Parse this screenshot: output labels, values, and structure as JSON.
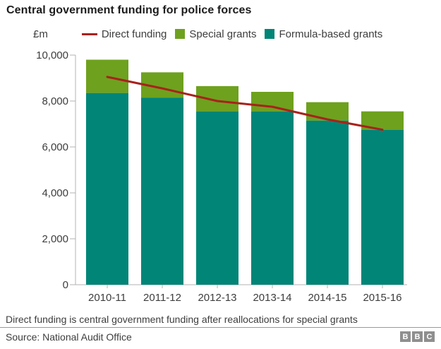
{
  "title": "Central government funding for police forces",
  "legend": {
    "unit_label": "£m",
    "items": [
      {
        "label": "Direct funding",
        "type": "line",
        "color": "#a8221c"
      },
      {
        "label": "Special grants",
        "type": "square",
        "color": "#6ea11e"
      },
      {
        "label": "Formula-based grants",
        "type": "square",
        "color": "#008577"
      }
    ]
  },
  "chart_data": {
    "type": "bar",
    "stacked": true,
    "title": "Central government funding for police forces",
    "ylabel": "£m",
    "xlabel": "",
    "ylim": [
      0,
      10000
    ],
    "yticks": [
      0,
      2000,
      4000,
      6000,
      8000,
      10000
    ],
    "ytick_labels": [
      "0",
      "2,000",
      "4,000",
      "6,000",
      "8,000",
      "10,000"
    ],
    "grid": false,
    "legend_position": "top",
    "categories": [
      "2010-11",
      "2011-12",
      "2012-13",
      "2013-14",
      "2014-15",
      "2015-16"
    ],
    "series": [
      {
        "name": "Formula-based grants",
        "render": "bar",
        "color": "#008577",
        "values": [
          8350,
          8150,
          7550,
          7550,
          7150,
          6750
        ]
      },
      {
        "name": "Special grants",
        "render": "bar",
        "color": "#6ea11e",
        "values": [
          1450,
          1100,
          1100,
          850,
          800,
          800
        ]
      },
      {
        "name": "Direct funding",
        "render": "line",
        "color": "#a8221c",
        "values": [
          9050,
          8550,
          8000,
          7750,
          7200,
          6750
        ]
      }
    ]
  },
  "colors": {
    "axis": "#b3b3b3",
    "tick_text": "#3d3d3d",
    "divider": "#999999",
    "logo_block": "#8f8f8f"
  },
  "footnote": "Direct funding is central government funding after reallocations for special grants",
  "source": "Source: National Audit Office",
  "logo": {
    "letters": [
      "B",
      "B",
      "C"
    ]
  }
}
